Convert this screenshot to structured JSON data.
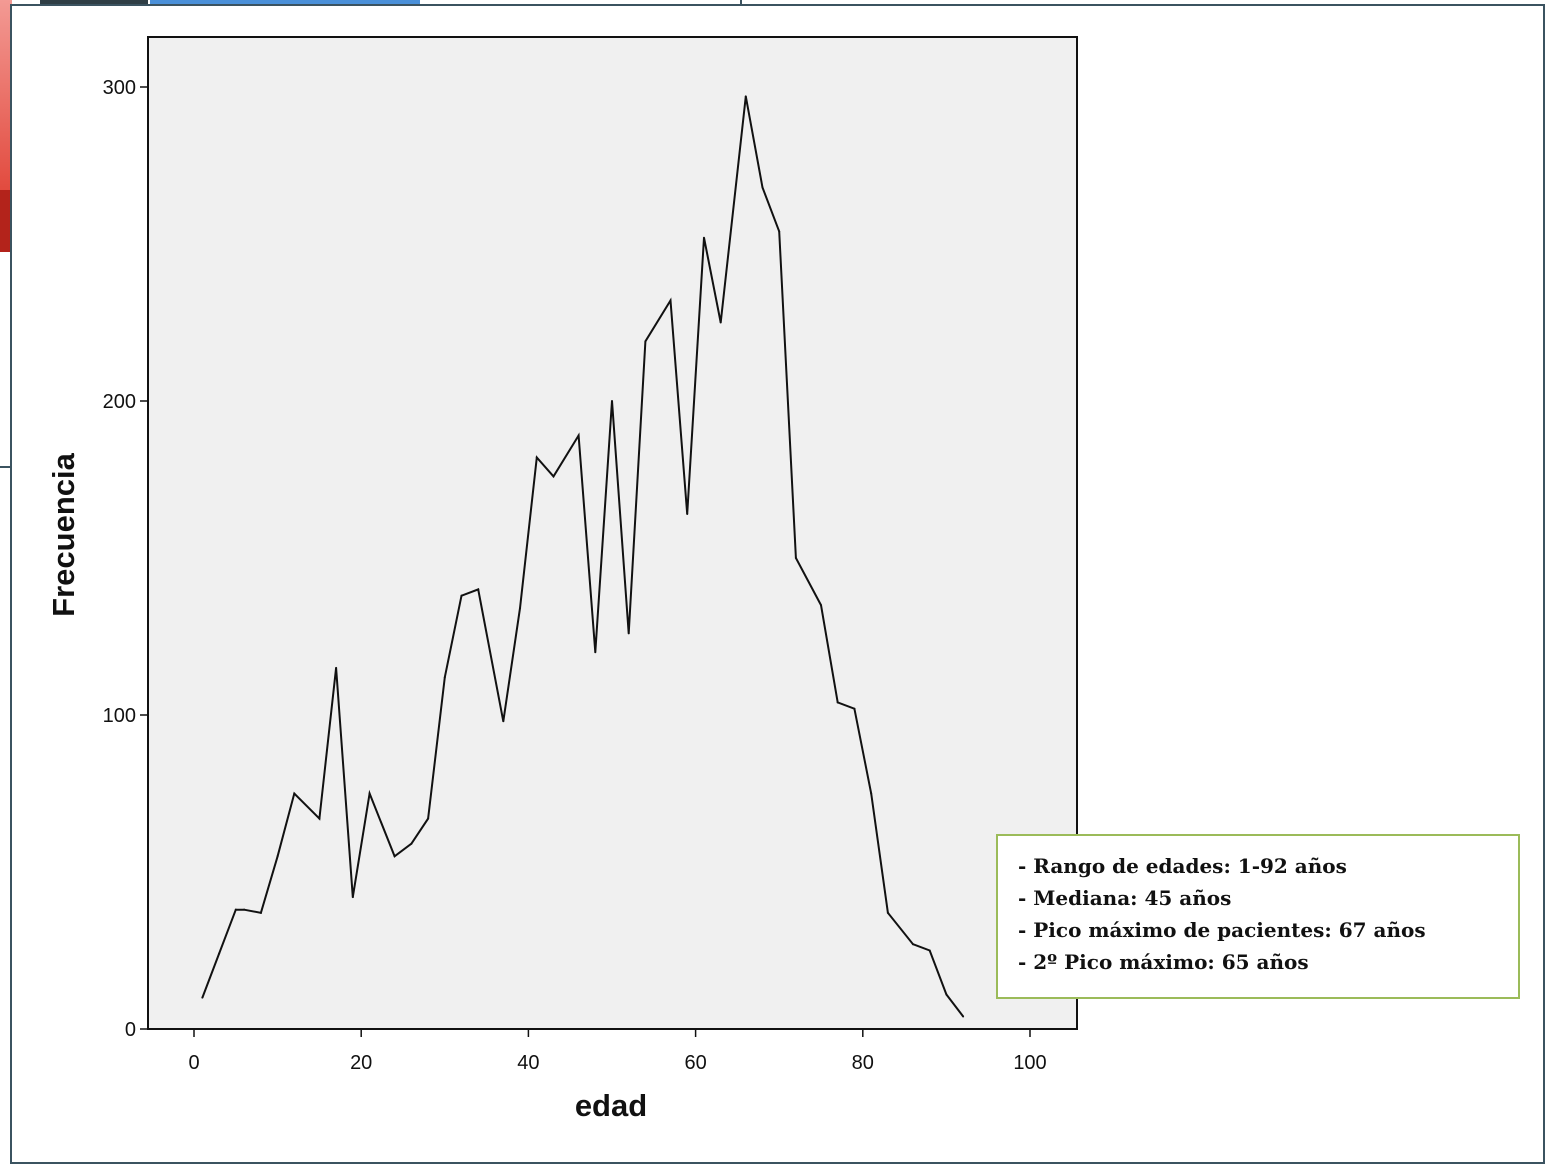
{
  "chart_data": {
    "type": "line",
    "xlabel": "edad",
    "ylabel": "Frecuencia",
    "xlim": [
      -5,
      105
    ],
    "ylim": [
      0,
      315
    ],
    "xticks": [
      0,
      20,
      40,
      60,
      80,
      100
    ],
    "yticks": [
      0,
      100,
      200,
      300
    ],
    "grid": false,
    "background": "#f0f0f0",
    "line_color": "#111111",
    "x": [
      1,
      3,
      5,
      6,
      8,
      10,
      12,
      15,
      17,
      19,
      21,
      24,
      26,
      28,
      30,
      32,
      34,
      37,
      39,
      41,
      43,
      46,
      48,
      50,
      52,
      54,
      57,
      59,
      61,
      63,
      66,
      68,
      70,
      72,
      75,
      77,
      79,
      81,
      83,
      86,
      88,
      90,
      92
    ],
    "y": [
      10,
      24,
      38,
      38,
      37,
      55,
      75,
      67,
      115,
      42,
      75,
      55,
      59,
      67,
      112,
      138,
      140,
      98,
      134,
      182,
      176,
      189,
      120,
      200,
      126,
      219,
      232,
      164,
      252,
      225,
      297,
      268,
      254,
      150,
      135,
      104,
      102,
      75,
      37,
      27,
      25,
      11,
      4
    ]
  },
  "stats_box": {
    "lines": [
      "- Rango de edades: 1-92 años",
      "- Mediana: 45 años",
      "- Pico máximo de pacientes: 67 años",
      "- 2º Pico máximo: 65 años"
    ],
    "border_color": "#9bbb59"
  }
}
